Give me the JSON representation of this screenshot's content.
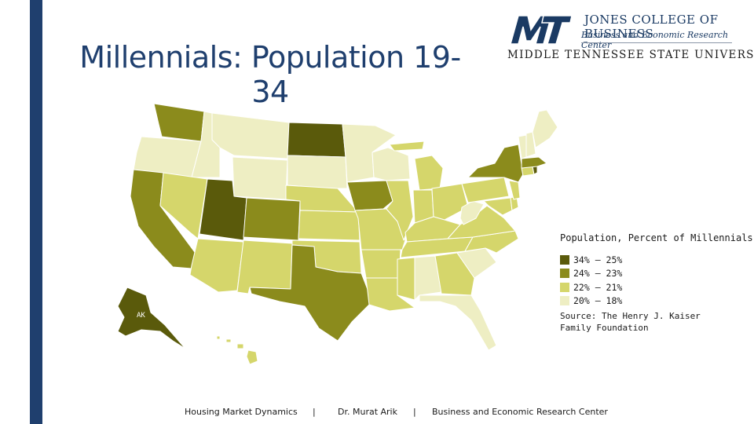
{
  "slide": {
    "title": "Millennials: Population 19-34"
  },
  "logo": {
    "mark": "MT",
    "college": "JONES COLLEGE OF BUSINESS",
    "center": "Business and Economic Research Center",
    "university": "MIDDLE TENNESSEE STATE UNIVERSITY"
  },
  "map": {
    "alaska_label": "AK"
  },
  "legend": {
    "title": "Population, Percent of Millennials",
    "items": [
      {
        "label": "34% – 25%",
        "color": "#5a5a0b"
      },
      {
        "label": "24% – 23%",
        "color": "#8b8b1c"
      },
      {
        "label": "22% – 21%",
        "color": "#d5d66b"
      },
      {
        "label": "20% – 18%",
        "color": "#eeeec3"
      }
    ]
  },
  "source": {
    "text": "Source: The Henry J. Kaiser Family Foundation"
  },
  "footer": {
    "left": "Housing Market Dynamics",
    "sep1": "|",
    "middle": "Dr. Murat Arik",
    "sep2": "|",
    "right": "Business and Economic Research Center"
  },
  "colors": {
    "brand_blue": "#1f3f6e"
  }
}
